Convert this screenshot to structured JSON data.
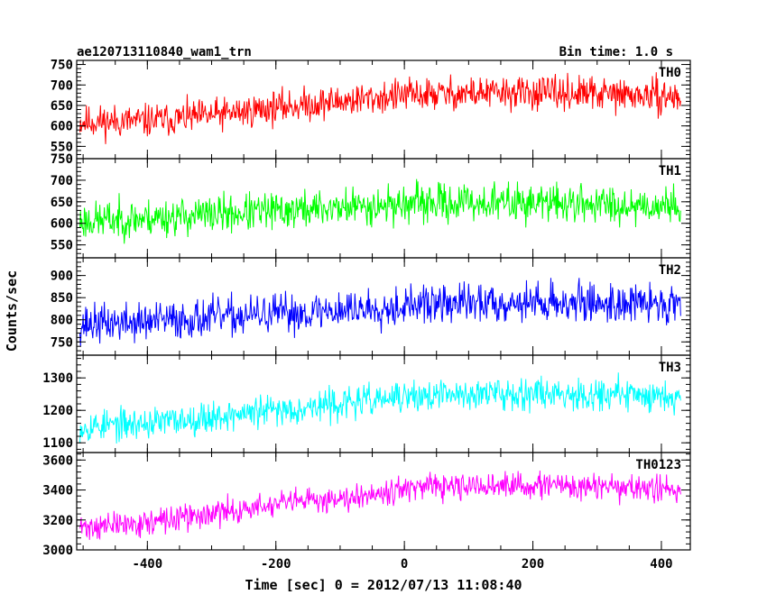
{
  "header": {
    "left": "ae120713110840_wam1_trn",
    "right": "Bin time: 1.0 s"
  },
  "chart_data": {
    "type": "line",
    "title": "ae120713110840_wam1_trn",
    "subtitle": "Bin time: 1.0 s",
    "xlabel": "Time [sec] 0 = 2012/07/13 11:08:40",
    "ylabel": "Counts/sec",
    "xlim": [
      -510,
      445
    ],
    "xticks": [
      -400,
      -200,
      0,
      200,
      400
    ],
    "x_range_of_data": [
      -505,
      430
    ],
    "grid": false,
    "legend": "none",
    "panels": [
      {
        "name": "TH0",
        "color": "#ff0000",
        "ylim": [
          520,
          760
        ],
        "yticks": [
          550,
          600,
          650,
          700,
          750
        ],
        "trend": {
          "x": [
            -505,
            -400,
            -300,
            -200,
            -100,
            0,
            100,
            200,
            300,
            430
          ],
          "mean": [
            610,
            612,
            625,
            645,
            660,
            675,
            680,
            680,
            678,
            670
          ]
        },
        "noise_amplitude": 35,
        "seed": 11
      },
      {
        "name": "TH1",
        "color": "#00ff00",
        "ylim": [
          520,
          750
        ],
        "yticks": [
          550,
          600,
          650,
          700,
          750
        ],
        "trend": {
          "x": [
            -505,
            -400,
            -300,
            -200,
            -100,
            0,
            100,
            200,
            300,
            430
          ],
          "mean": [
            605,
            612,
            620,
            628,
            637,
            645,
            648,
            648,
            645,
            640
          ]
        },
        "noise_amplitude": 38,
        "seed": 23
      },
      {
        "name": "TH2",
        "color": "#0000ff",
        "ylim": [
          720,
          940
        ],
        "yticks": [
          750,
          800,
          850,
          900
        ],
        "trend": {
          "x": [
            -505,
            -400,
            -300,
            -200,
            -100,
            0,
            100,
            200,
            300,
            430
          ],
          "mean": [
            790,
            795,
            805,
            812,
            822,
            832,
            838,
            840,
            838,
            835
          ]
        },
        "noise_amplitude": 38,
        "seed": 37
      },
      {
        "name": "TH3",
        "color": "#00ffff",
        "ylim": [
          1070,
          1370
        ],
        "yticks": [
          1100,
          1200,
          1300
        ],
        "trend": {
          "x": [
            -505,
            -400,
            -300,
            -200,
            -100,
            0,
            100,
            200,
            300,
            430
          ],
          "mean": [
            1150,
            1160,
            1180,
            1200,
            1220,
            1240,
            1250,
            1255,
            1250,
            1245
          ]
        },
        "noise_amplitude": 42,
        "seed": 53
      },
      {
        "name": "TH0123",
        "color": "#ff00ff",
        "ylim": [
          3000,
          3650
        ],
        "yticks": [
          3000,
          3200,
          3400,
          3600
        ],
        "trend": {
          "x": [
            -505,
            -400,
            -300,
            -200,
            -100,
            0,
            100,
            200,
            300,
            430
          ],
          "mean": [
            3150,
            3180,
            3240,
            3300,
            3350,
            3410,
            3420,
            3430,
            3420,
            3400
          ]
        },
        "noise_amplitude": 75,
        "seed": 71
      }
    ]
  }
}
